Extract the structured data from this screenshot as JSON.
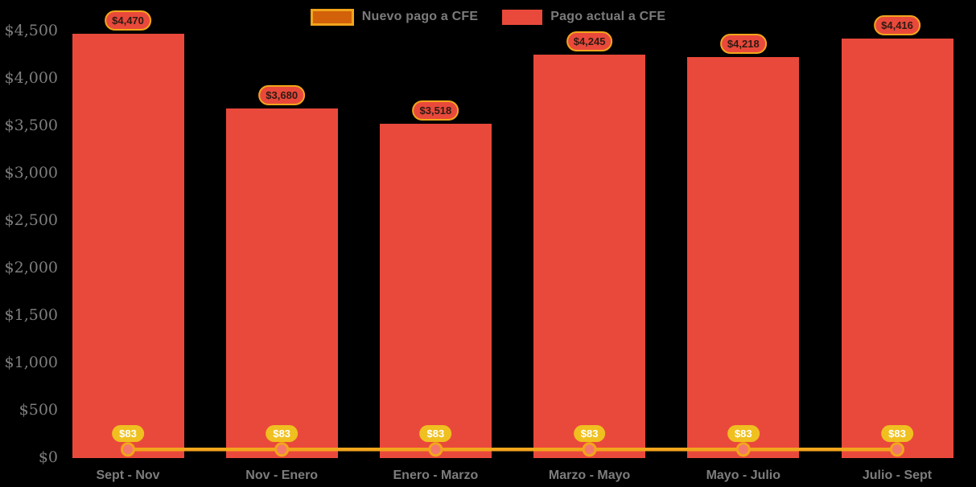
{
  "legend": {
    "items": [
      {
        "label": "Nuevo pago a CFE",
        "swatch_fill": "#D2610A",
        "swatch_border": "#F2A51B"
      },
      {
        "label": "Pago actual a CFE",
        "swatch_fill": "#E9493B",
        "swatch_border": null
      }
    ]
  },
  "chart_data": {
    "type": "bar",
    "title": "",
    "categories": [
      "Sept - Nov",
      "Nov - Enero",
      "Enero - Marzo",
      "Marzo - Mayo",
      "Mayo - Julio",
      "Julio - Sept"
    ],
    "series": [
      {
        "name": "Nuevo pago a CFE",
        "type": "line",
        "color": "#F2A51B",
        "marker_fill": "#F4796C",
        "values": [
          83,
          83,
          83,
          83,
          83,
          83
        ],
        "point_labels": [
          "$83",
          "$83",
          "$83",
          "$83",
          "$83",
          "$83"
        ]
      },
      {
        "name": "Pago actual a CFE",
        "type": "bar",
        "color": "#E9493B",
        "values": [
          4470,
          3680,
          3518,
          4245,
          4218,
          4416
        ],
        "point_labels": [
          "$4,470",
          "$3,680",
          "$3,518",
          "$4,245",
          "$4,218",
          "$4,416"
        ]
      }
    ],
    "y_axis": {
      "tick_values": [
        0,
        500,
        1000,
        1500,
        2000,
        2500,
        3000,
        3500,
        4000,
        4500
      ],
      "tick_labels": [
        "$0",
        "$500",
        "$1,000",
        "$1,500",
        "$2,000",
        "$2,500",
        "$3,000",
        "$3,500",
        "$4,000",
        "$4,500"
      ],
      "range": [
        0,
        4500
      ],
      "grid": false
    },
    "legend_position": "top-center",
    "background": "#000000",
    "colors": {
      "bar": "#E9493B",
      "line": "#F2A51B",
      "marker_fill": "#F4796C",
      "value_pill_fill": "#E9493B",
      "value_pill_border": "#F2A51B",
      "value_pill_text": "#2E1B13",
      "mini_pill_fill": "#EFC01F",
      "mini_pill_text": "#FFFFFF",
      "axis_text": "#7E7E7E"
    }
  }
}
